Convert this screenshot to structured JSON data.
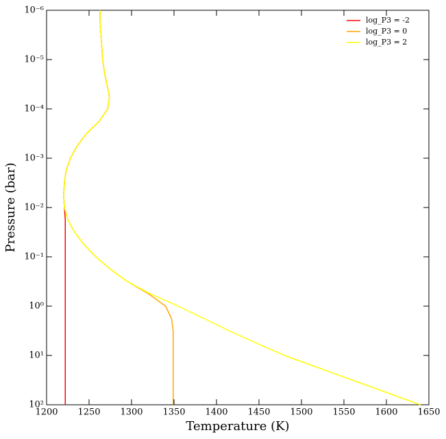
{
  "chart_data": {
    "type": "line",
    "xlabel": "Temperature (K)",
    "ylabel": "Pressure (bar)",
    "xlim": [
      1200,
      1650
    ],
    "xticks": [
      1200,
      1250,
      1300,
      1350,
      1400,
      1450,
      1500,
      1550,
      1600,
      1650
    ],
    "ylim": [
      1e-06,
      100
    ],
    "yscale": "log",
    "invert_y": true,
    "legend": "upper right",
    "yticks": [
      {
        "value": 1e-06,
        "label": "10⁻⁶"
      },
      {
        "value": 1e-05,
        "label": "10⁻⁵"
      },
      {
        "value": 0.0001,
        "label": "10⁻⁴"
      },
      {
        "value": 0.001,
        "label": "10⁻³"
      },
      {
        "value": 0.01,
        "label": "10⁻²"
      },
      {
        "value": 0.1,
        "label": "10⁻¹"
      },
      {
        "value": 1,
        "label": "10⁰"
      },
      {
        "value": 10,
        "label": "10¹"
      },
      {
        "value": 100,
        "label": "10²"
      }
    ],
    "y": [
      1e-06,
      1.778e-06,
      3.162e-06,
      5.623e-06,
      1e-05,
      1.778e-05,
      3.162e-05,
      5.623e-05,
      0.0001,
      0.0001778,
      0.0003162,
      0.0005623,
      0.001,
      0.001778,
      0.003162,
      0.005623,
      0.01,
      0.01778,
      0.03162,
      0.05623,
      0.1,
      0.1778,
      0.3162,
      0.5623,
      1,
      1.778,
      3.162,
      5.623,
      10,
      17.78,
      31.62,
      56.23,
      100
    ],
    "series": [
      {
        "name": "log_P3 = -2",
        "color": "#ff0000",
        "x": [
          1263,
          1263,
          1264,
          1265,
          1266,
          1268,
          1271,
          1274,
          1272,
          1262,
          1247,
          1236,
          1228,
          1223,
          1221,
          1220,
          1221,
          1222,
          1222,
          1222,
          1222,
          1222,
          1222,
          1222,
          1222,
          1222,
          1222,
          1222,
          1222,
          1222,
          1222,
          1222,
          1222
        ]
      },
      {
        "name": "log_P3 = 0",
        "color": "#ffa500",
        "x": [
          1263,
          1263,
          1264,
          1265,
          1266,
          1268,
          1271,
          1274,
          1272,
          1262,
          1247,
          1236,
          1228,
          1223,
          1221,
          1220,
          1221,
          1225,
          1233,
          1244,
          1258,
          1275,
          1295,
          1320,
          1340,
          1347,
          1349,
          1349,
          1349,
          1349,
          1349,
          1349,
          1349
        ]
      },
      {
        "name": "log_P3 = 2",
        "color": "#ffff00",
        "x": [
          1263,
          1263,
          1264,
          1265,
          1266,
          1268,
          1271,
          1274,
          1272,
          1262,
          1247,
          1236,
          1228,
          1223,
          1221,
          1220,
          1221,
          1225,
          1233,
          1244,
          1258,
          1275,
          1295,
          1322,
          1355,
          1385,
          1415,
          1447,
          1480,
          1520,
          1560,
          1600,
          1640
        ]
      }
    ]
  }
}
